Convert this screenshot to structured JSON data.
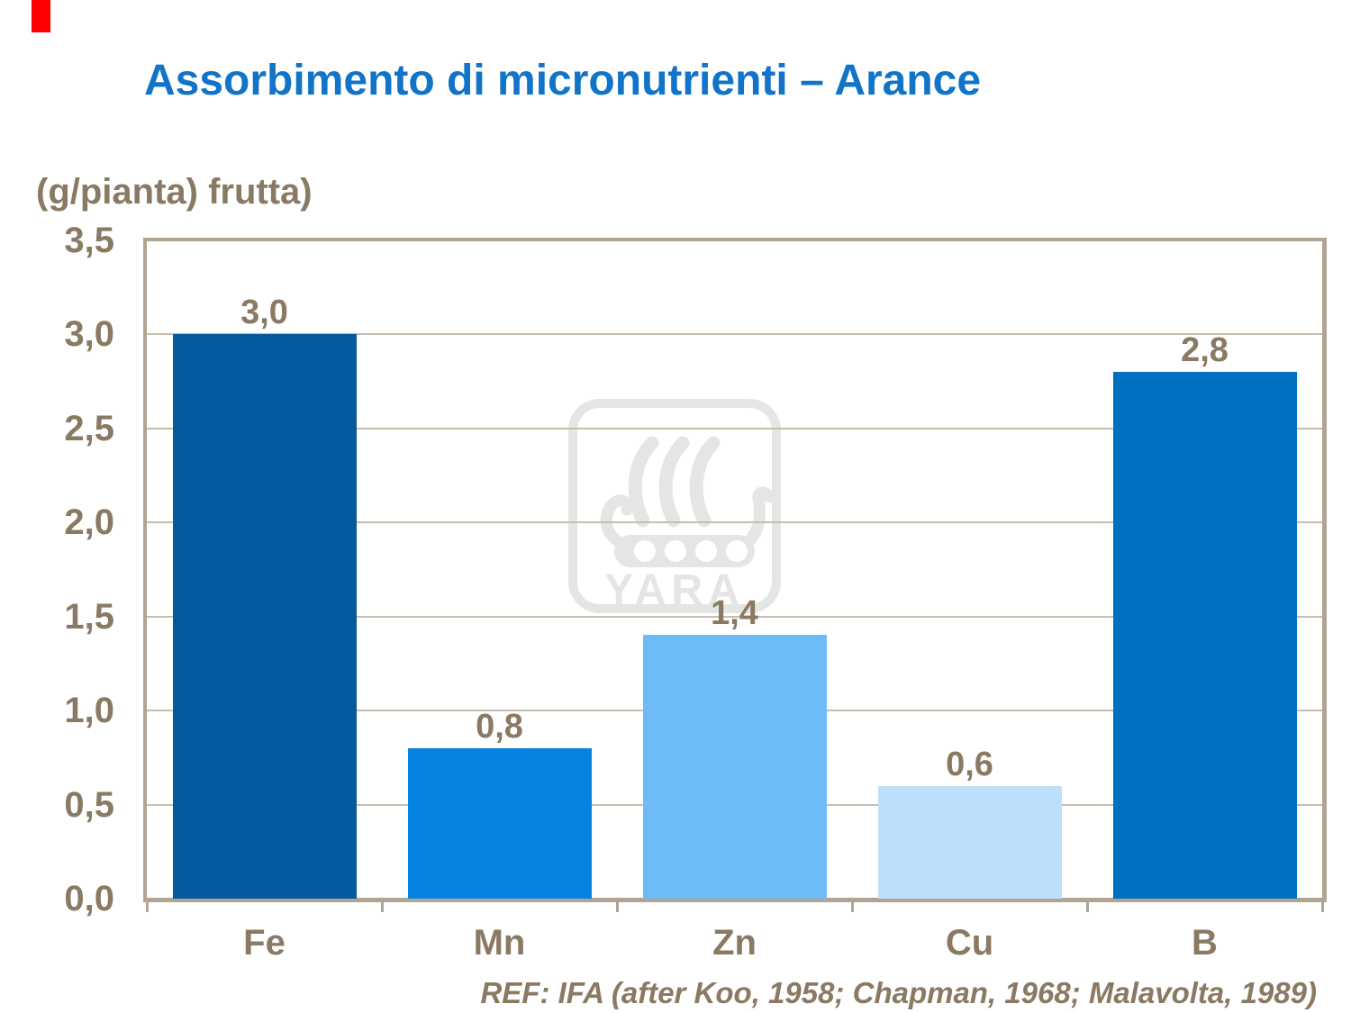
{
  "slide": {
    "title": "Assorbimento di micronutrienti – Arance",
    "y_axis_unit": "(g/pianta) frutta)",
    "reference": "REF: IFA (after Koo, 1958; Chapman, 1968; Malavolta, 1989)",
    "watermark_text": "YARA"
  },
  "chart_data": {
    "type": "bar",
    "title": "Assorbimento di micronutrienti – Arance",
    "ylabel": "(g/pianta) frutta)",
    "categories": [
      "Fe",
      "Mn",
      "Zn",
      "Cu",
      "B"
    ],
    "values": [
      3.0,
      0.8,
      1.4,
      0.6,
      2.8
    ],
    "value_labels": [
      "3,0",
      "0,8",
      "1,4",
      "0,6",
      "2,8"
    ],
    "bar_colors": [
      "#05599D",
      "#0583E3",
      "#6DBCF8",
      "#BEDFFA",
      "#0070C0"
    ],
    "ylim": [
      0,
      3.5
    ],
    "ytick_values": [
      0,
      0.5,
      1.0,
      1.5,
      2.0,
      2.5,
      3.0,
      3.5
    ],
    "ytick_labels": [
      "0,0",
      "0,5",
      "1,0",
      "1,5",
      "2,0",
      "2,5",
      "3,0",
      "3,5"
    ],
    "grid": true,
    "legend": false
  },
  "colors": {
    "title_blue": "#1174C8",
    "text_brown": "#8A7963",
    "axis_border": "#B2A494",
    "gridline": "#C8BDAE",
    "watermark_gray": "#E5E5E5",
    "red_marker": "#FF0000"
  }
}
